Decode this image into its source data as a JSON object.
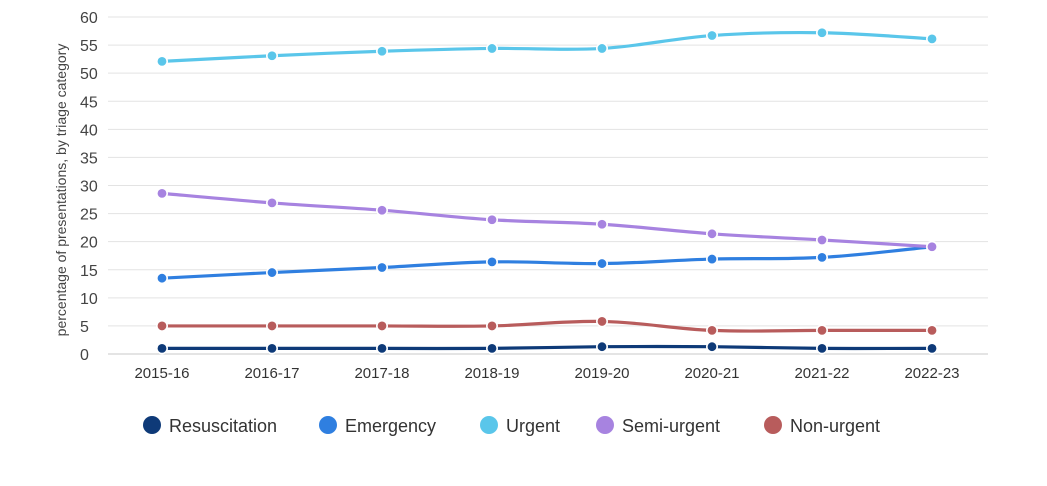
{
  "chart_data": {
    "type": "line",
    "ylabel": "percentage of presentations, by triage category",
    "xlabel": "",
    "ylim": [
      0,
      60
    ],
    "yticks": [
      0,
      5,
      10,
      15,
      20,
      25,
      30,
      35,
      40,
      45,
      50,
      55,
      60
    ],
    "categories": [
      "2015-16",
      "2016-17",
      "2017-18",
      "2018-19",
      "2019-20",
      "2020-21",
      "2021-22",
      "2022-23"
    ],
    "grid": true,
    "legend_position": "bottom",
    "series": [
      {
        "name": "Resuscitation",
        "color": "#0e3a78",
        "values": [
          1.0,
          1.0,
          1.0,
          1.0,
          1.3,
          1.3,
          1.0,
          1.0
        ]
      },
      {
        "name": "Emergency",
        "color": "#2f7fe0",
        "values": [
          13.5,
          14.5,
          15.4,
          16.4,
          16.1,
          16.9,
          17.2,
          19.1
        ]
      },
      {
        "name": "Urgent",
        "color": "#5ac6ea",
        "values": [
          52.1,
          53.1,
          53.9,
          54.4,
          54.4,
          56.7,
          57.2,
          56.1
        ]
      },
      {
        "name": "Semi-urgent",
        "color": "#a783e0",
        "values": [
          28.6,
          26.9,
          25.6,
          23.9,
          23.1,
          21.4,
          20.3,
          19.1
        ]
      },
      {
        "name": "Non-urgent",
        "color": "#b85c5c",
        "values": [
          5.0,
          5.0,
          5.0,
          5.0,
          5.8,
          4.2,
          4.2,
          4.2
        ]
      }
    ]
  }
}
